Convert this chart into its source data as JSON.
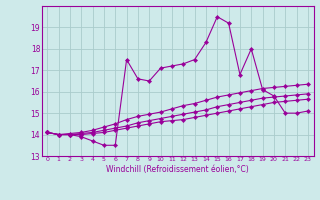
{
  "xlabel": "Windchill (Refroidissement éolien,°C)",
  "background_color": "#ceeaea",
  "line_color": "#990099",
  "grid_color": "#aacccc",
  "xlim": [
    -0.5,
    23.5
  ],
  "ylim": [
    13,
    20
  ],
  "yticks": [
    13,
    14,
    15,
    16,
    17,
    18,
    19
  ],
  "xticks": [
    0,
    1,
    2,
    3,
    4,
    5,
    6,
    7,
    8,
    9,
    10,
    11,
    12,
    13,
    14,
    15,
    16,
    17,
    18,
    19,
    20,
    21,
    22,
    23
  ],
  "series": [
    [
      14.1,
      14.0,
      14.0,
      13.9,
      13.7,
      13.5,
      13.5,
      17.5,
      16.6,
      16.5,
      17.1,
      17.2,
      17.3,
      17.5,
      18.3,
      19.5,
      19.2,
      16.8,
      18.0,
      16.1,
      15.8,
      15.0,
      15.0,
      15.1
    ],
    [
      14.1,
      14.0,
      14.0,
      14.0,
      14.05,
      14.1,
      14.2,
      14.3,
      14.4,
      14.5,
      14.6,
      14.65,
      14.7,
      14.8,
      14.9,
      15.0,
      15.1,
      15.2,
      15.3,
      15.4,
      15.5,
      15.55,
      15.6,
      15.65
    ],
    [
      14.1,
      14.0,
      14.0,
      14.05,
      14.1,
      14.2,
      14.3,
      14.4,
      14.55,
      14.65,
      14.75,
      14.85,
      14.95,
      15.05,
      15.15,
      15.3,
      15.4,
      15.5,
      15.6,
      15.7,
      15.75,
      15.8,
      15.85,
      15.9
    ],
    [
      14.1,
      14.0,
      14.05,
      14.1,
      14.2,
      14.35,
      14.5,
      14.7,
      14.85,
      14.95,
      15.05,
      15.2,
      15.35,
      15.45,
      15.6,
      15.75,
      15.85,
      15.95,
      16.05,
      16.15,
      16.2,
      16.25,
      16.3,
      16.35
    ]
  ]
}
